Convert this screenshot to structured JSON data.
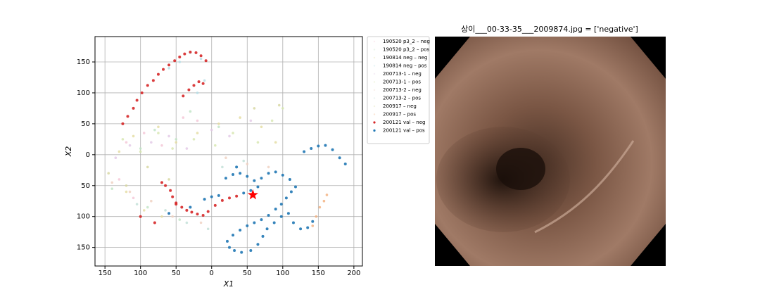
{
  "chart_data": {
    "type": "scatter",
    "x_label": "X1",
    "y_label": "X2",
    "xlim": [
      -164,
      212
    ],
    "ylim": [
      -180,
      191
    ],
    "xticks": [
      {
        "value": -150,
        "label": "150"
      },
      {
        "value": -100,
        "label": "100"
      },
      {
        "value": -50,
        "label": "50"
      },
      0,
      50,
      100,
      150,
      200
    ],
    "yticks": [
      150,
      100,
      50,
      0,
      {
        "value": -50,
        "label": "50"
      },
      {
        "value": -100,
        "label": "100"
      },
      {
        "value": -150,
        "label": "150"
      }
    ],
    "grid": true,
    "legend": "outside right",
    "series": [
      {
        "name": "190520 p3_2 – neg",
        "color": "#f4c6d6",
        "x": [
          -120,
          -95,
          -70,
          -40,
          -130,
          -110,
          -60,
          -20
        ],
        "y": [
          20,
          35,
          15,
          60,
          -40,
          -70,
          -95,
          55
        ]
      },
      {
        "name": "190520 p3_2 – pos",
        "color": "#bfe3c4",
        "x": [
          -100,
          -80,
          -50,
          -30,
          -140,
          -90,
          -45,
          10
        ],
        "y": [
          10,
          40,
          25,
          70,
          -55,
          -85,
          -105,
          45
        ]
      },
      {
        "name": "190814 neg – neg",
        "color": "#e4dca0",
        "x": [
          -130,
          -110,
          -75,
          -50,
          -20,
          10,
          40,
          70,
          90,
          -120,
          -95,
          -70
        ],
        "y": [
          5,
          30,
          45,
          20,
          35,
          50,
          60,
          45,
          20,
          -60,
          -90,
          -100
        ]
      },
      {
        "name": "190814 neg – pos",
        "color": "#b4dde6",
        "x": [
          -45,
          -30,
          -15,
          -10,
          -60,
          -20
        ],
        "y": [
          150,
          165,
          155,
          120,
          140,
          100
        ]
      },
      {
        "name": "200713-1 – neg",
        "color": "#e2c8e6",
        "x": [
          -135,
          -115,
          -85,
          -60,
          -35,
          0,
          25,
          55
        ],
        "y": [
          -5,
          15,
          20,
          30,
          10,
          40,
          30,
          55
        ]
      },
      {
        "name": "200713-1 – pos",
        "color": "#d6e6ae",
        "x": [
          -125,
          -100,
          -75,
          -55,
          -25,
          5,
          30,
          65,
          85,
          100
        ],
        "y": [
          25,
          5,
          35,
          10,
          25,
          15,
          35,
          20,
          55,
          75
        ]
      },
      {
        "name": "200713-2 – neg",
        "color": "#efcfbf",
        "x": [
          -140,
          -115,
          -85,
          -55,
          -15,
          20,
          50,
          80,
          110
        ],
        "y": [
          -45,
          -60,
          -75,
          -100,
          -110,
          -5,
          -15,
          -20,
          -40
        ]
      },
      {
        "name": "200713-2 – pos",
        "color": "#bfdfd6",
        "x": [
          -105,
          -65,
          -35,
          -5,
          15,
          45
        ],
        "y": [
          -80,
          -90,
          -110,
          -120,
          -20,
          -10
        ]
      },
      {
        "name": "200917 – neg",
        "color": "#d6d69e",
        "x": [
          -145,
          -120,
          -90,
          -60,
          60,
          95
        ],
        "y": [
          -30,
          -50,
          -20,
          -40,
          75,
          80
        ]
      },
      {
        "name": "200917 – pos",
        "color": "#f2ae7a",
        "x": [
          142,
          147,
          152,
          158,
          162
        ],
        "y": [
          -115,
          -100,
          -85,
          -75,
          -65
        ]
      },
      {
        "name": "200121 val – neg",
        "color": "#d62728",
        "x": [
          -125,
          -118,
          -110,
          -105,
          -98,
          -90,
          -82,
          -75,
          -68,
          -60,
          -52,
          -45,
          -38,
          -30,
          -22,
          -15,
          -8,
          -40,
          -32,
          -25,
          -18,
          -12,
          -70,
          -65,
          -58,
          -55,
          -50,
          -42,
          -35,
          -28,
          -20,
          -12,
          -5,
          5,
          15,
          25,
          35,
          -100,
          -80,
          -50
        ],
        "y": [
          50,
          62,
          75,
          88,
          100,
          112,
          120,
          130,
          138,
          145,
          152,
          158,
          163,
          166,
          165,
          160,
          152,
          95,
          105,
          112,
          118,
          115,
          -45,
          -50,
          -58,
          -68,
          -78,
          -85,
          -90,
          -93,
          -96,
          -98,
          -92,
          -82,
          -74,
          -70,
          -67,
          -100,
          -110,
          -80
        ]
      },
      {
        "name": "200121 val – pos",
        "color": "#1f77b4",
        "x": [
          130,
          140,
          150,
          160,
          170,
          180,
          188,
          20,
          30,
          40,
          50,
          60,
          70,
          80,
          90,
          100,
          110,
          118,
          112,
          105,
          98,
          90,
          80,
          70,
          60,
          50,
          40,
          30,
          22,
          25,
          32,
          42,
          55,
          65,
          72,
          78,
          88,
          98,
          108,
          115,
          125,
          135,
          142,
          -10,
          0,
          10,
          45,
          55,
          65,
          -60,
          -30,
          35
        ],
        "y": [
          5,
          10,
          14,
          15,
          8,
          -5,
          -15,
          -38,
          -32,
          -30,
          -35,
          -42,
          -38,
          -30,
          -28,
          -33,
          -40,
          -52,
          -60,
          -70,
          -80,
          -88,
          -98,
          -105,
          -110,
          -115,
          -122,
          -130,
          -140,
          -150,
          -155,
          -158,
          -155,
          -145,
          -132,
          -120,
          -110,
          -100,
          -95,
          -110,
          -120,
          -118,
          -108,
          -72,
          -68,
          -66,
          -62,
          -58,
          -52,
          -95,
          -85,
          -20
        ]
      }
    ],
    "highlight": {
      "x": 58,
      "y": -65,
      "color": "#ff0000"
    }
  },
  "image": {
    "title": "상이___00-33-35___2009874.jpg = ['negative']"
  }
}
